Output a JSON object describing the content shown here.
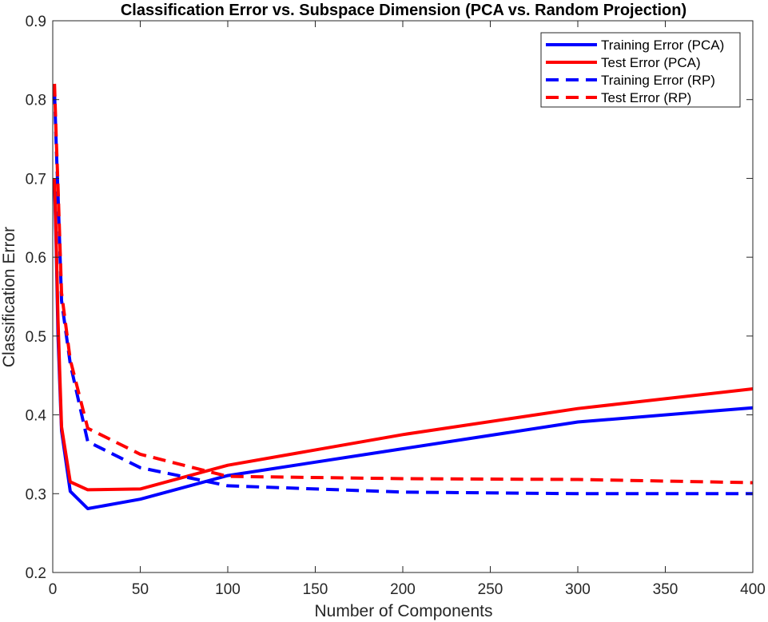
{
  "chart_data": {
    "type": "line",
    "title": "Classification Error vs. Subspace Dimension (PCA vs. Random Projection)",
    "xlabel": "Number of Components",
    "ylabel": "Classification Error",
    "xlim": [
      0,
      400
    ],
    "ylim": [
      0.2,
      0.9
    ],
    "xticks": [
      0,
      50,
      100,
      150,
      200,
      250,
      300,
      350,
      400
    ],
    "yticks": [
      0.2,
      0.3,
      0.4,
      0.5,
      0.6,
      0.7,
      0.8,
      0.9
    ],
    "xtick_labels": [
      "0",
      "50",
      "100",
      "150",
      "200",
      "250",
      "300",
      "350",
      "400"
    ],
    "ytick_labels": [
      "0.2",
      "0.3",
      "0.4",
      "0.5",
      "0.6",
      "0.7",
      "0.8",
      "0.9"
    ],
    "grid": false,
    "legend_position": "top-right",
    "series": [
      {
        "name": "Training Error (PCA)",
        "color": "#0000ff",
        "dash": "solid",
        "x": [
          1,
          2,
          3,
          5,
          10,
          20,
          50,
          100,
          200,
          300,
          400
        ],
        "y": [
          0.695,
          0.61,
          0.5,
          0.38,
          0.303,
          0.281,
          0.293,
          0.323,
          0.357,
          0.391,
          0.409
        ]
      },
      {
        "name": "Test Error (PCA)",
        "color": "#ff0000",
        "dash": "solid",
        "x": [
          1,
          2,
          3,
          5,
          10,
          20,
          50,
          100,
          200,
          300,
          400
        ],
        "y": [
          0.7,
          0.62,
          0.52,
          0.385,
          0.315,
          0.305,
          0.306,
          0.336,
          0.375,
          0.408,
          0.433
        ]
      },
      {
        "name": "Training Error (RP)",
        "color": "#0000ff",
        "dash": "dashed",
        "x": [
          1,
          2,
          3,
          5,
          10,
          20,
          50,
          100,
          200,
          300,
          400
        ],
        "y": [
          0.81,
          0.74,
          0.68,
          0.545,
          0.465,
          0.366,
          0.333,
          0.31,
          0.302,
          0.3,
          0.3
        ]
      },
      {
        "name": "Test Error (RP)",
        "color": "#ff0000",
        "dash": "dashed",
        "x": [
          1,
          2,
          3,
          5,
          10,
          20,
          50,
          100,
          200,
          300,
          400
        ],
        "y": [
          0.82,
          0.75,
          0.69,
          0.555,
          0.47,
          0.383,
          0.35,
          0.322,
          0.319,
          0.318,
          0.314
        ]
      }
    ]
  }
}
